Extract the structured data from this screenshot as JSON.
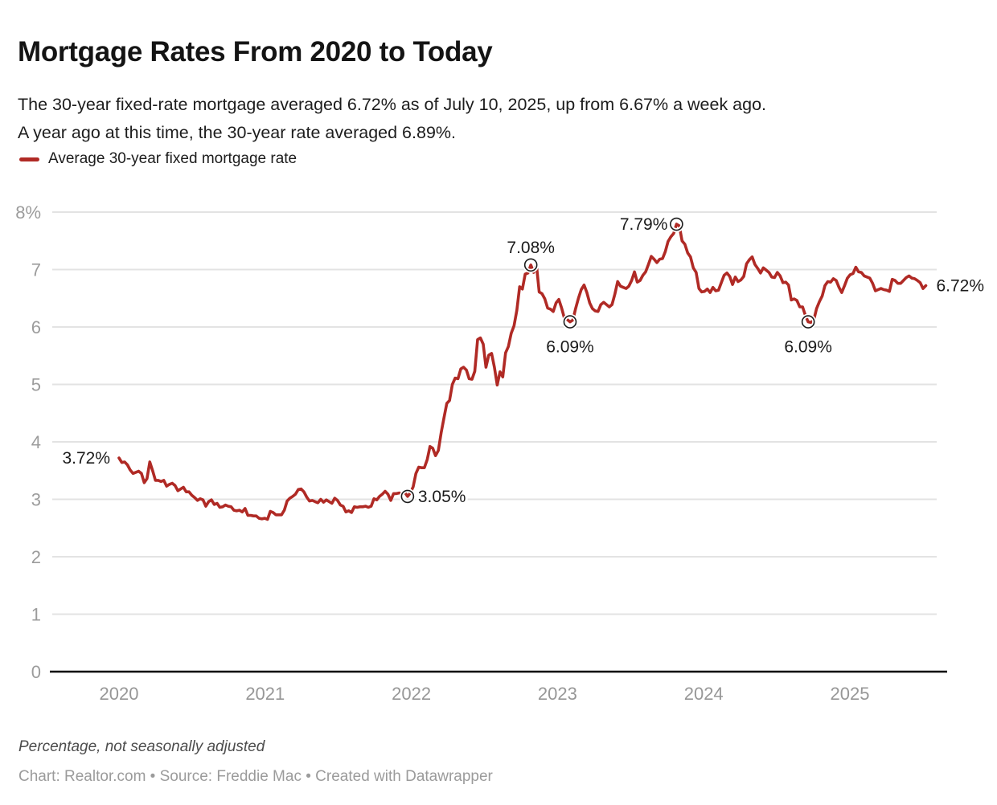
{
  "header": {
    "title": "Mortgage Rates From 2020 to Today",
    "subtitle_lines": [
      "The 30-year fixed-rate mortgage averaged 6.72% as of July 10, 2025, up from 6.67% a week ago.",
      "A year ago at this time, the 30-year rate averaged 6.89%."
    ]
  },
  "legend": {
    "label": "Average 30-year fixed mortgage rate"
  },
  "footer": {
    "note": "Percentage, not seasonally adjusted",
    "credit": "Chart: Realtor.com • Source: Freddie Mac • Created with Datawrapper"
  },
  "chart_data": {
    "type": "line",
    "title": "Mortgage Rates From 2020 to Today",
    "series_name": "Average 30-year fixed mortgage rate",
    "unit": "percent",
    "frequency": "weekly",
    "start_date": "2020-01-02",
    "end_date": "2025-07-10",
    "line_color": "#b02a25",
    "grid": "horizontal",
    "ylim": [
      0,
      8
    ],
    "yticks": [
      "0",
      "1",
      "2",
      "3",
      "4",
      "5",
      "6",
      "7",
      "8%"
    ],
    "years": [
      "2020",
      "2021",
      "2022",
      "2023",
      "2024",
      "2025"
    ],
    "values": [
      3.72,
      3.64,
      3.65,
      3.6,
      3.51,
      3.45,
      3.47,
      3.49,
      3.45,
      3.29,
      3.36,
      3.65,
      3.5,
      3.33,
      3.33,
      3.31,
      3.33,
      3.23,
      3.26,
      3.28,
      3.24,
      3.15,
      3.18,
      3.21,
      3.13,
      3.13,
      3.07,
      3.03,
      2.98,
      3.01,
      2.99,
      2.88,
      2.96,
      2.99,
      2.91,
      2.93,
      2.86,
      2.87,
      2.9,
      2.88,
      2.87,
      2.81,
      2.8,
      2.81,
      2.78,
      2.84,
      2.72,
      2.72,
      2.71,
      2.71,
      2.67,
      2.66,
      2.67,
      2.65,
      2.79,
      2.77,
      2.73,
      2.73,
      2.73,
      2.81,
      2.97,
      3.02,
      3.05,
      3.09,
      3.17,
      3.18,
      3.13,
      3.04,
      2.97,
      2.98,
      2.96,
      2.94,
      3.0,
      2.95,
      2.99,
      2.96,
      2.93,
      3.02,
      2.98,
      2.9,
      2.88,
      2.78,
      2.8,
      2.77,
      2.87,
      2.86,
      2.87,
      2.87,
      2.88,
      2.86,
      2.88,
      3.01,
      2.99,
      3.05,
      3.09,
      3.14,
      3.09,
      2.98,
      3.1,
      3.1,
      3.11,
      3.1,
      3.12,
      3.05,
      3.11,
      3.22,
      3.45,
      3.56,
      3.55,
      3.55,
      3.69,
      3.92,
      3.89,
      3.76,
      3.85,
      4.16,
      4.42,
      4.67,
      4.72,
      5.0,
      5.11,
      5.1,
      5.27,
      5.3,
      5.25,
      5.1,
      5.09,
      5.23,
      5.78,
      5.81,
      5.7,
      5.3,
      5.51,
      5.54,
      5.3,
      4.99,
      5.22,
      5.13,
      5.55,
      5.66,
      5.89,
      6.02,
      6.29,
      6.7,
      6.66,
      6.92,
      6.94,
      7.08,
      6.95,
      7.08,
      6.61,
      6.58,
      6.49,
      6.33,
      6.31,
      6.27,
      6.42,
      6.48,
      6.33,
      6.15,
      6.13,
      6.09,
      6.12,
      6.32,
      6.5,
      6.65,
      6.73,
      6.6,
      6.42,
      6.32,
      6.28,
      6.27,
      6.39,
      6.43,
      6.39,
      6.35,
      6.39,
      6.57,
      6.79,
      6.71,
      6.69,
      6.67,
      6.71,
      6.81,
      6.96,
      6.78,
      6.81,
      6.9,
      6.96,
      7.09,
      7.23,
      7.18,
      7.12,
      7.18,
      7.19,
      7.31,
      7.49,
      7.57,
      7.63,
      7.79,
      7.76,
      7.5,
      7.44,
      7.29,
      7.22,
      7.03,
      6.95,
      6.67,
      6.61,
      6.62,
      6.66,
      6.6,
      6.69,
      6.63,
      6.64,
      6.77,
      6.9,
      6.94,
      6.88,
      6.74,
      6.87,
      6.79,
      6.82,
      6.88,
      7.1,
      7.17,
      7.22,
      7.09,
      7.02,
      6.94,
      7.03,
      6.99,
      6.95,
      6.87,
      6.86,
      6.95,
      6.89,
      6.77,
      6.78,
      6.73,
      6.47,
      6.49,
      6.46,
      6.35,
      6.35,
      6.2,
      6.09,
      6.08,
      6.12,
      6.32,
      6.44,
      6.54,
      6.72,
      6.79,
      6.78,
      6.84,
      6.81,
      6.69,
      6.6,
      6.72,
      6.85,
      6.91,
      6.93,
      7.04,
      6.96,
      6.95,
      6.89,
      6.87,
      6.85,
      6.76,
      6.63,
      6.65,
      6.67,
      6.65,
      6.64,
      6.62,
      6.83,
      6.81,
      6.76,
      6.76,
      6.81,
      6.86,
      6.89,
      6.85,
      6.84,
      6.81,
      6.77,
      6.67,
      6.72
    ],
    "annotations": [
      {
        "text": "3.72%",
        "index": 0,
        "value": 3.72,
        "placement": "left",
        "circle": false
      },
      {
        "text": "3.05%",
        "index": 103,
        "value": 3.05,
        "placement": "right",
        "circle": true
      },
      {
        "text": "7.08%",
        "index": 147,
        "value": 7.08,
        "placement": "above",
        "circle": true
      },
      {
        "text": "6.09%",
        "index": 161,
        "value": 6.09,
        "placement": "below",
        "circle": true
      },
      {
        "text": "7.79%",
        "index": 199,
        "value": 7.79,
        "placement": "left",
        "circle": true
      },
      {
        "text": "6.09%",
        "index": 246,
        "value": 6.09,
        "placement": "below",
        "circle": true
      },
      {
        "text": "6.72%",
        "index": 288,
        "value": 6.72,
        "placement": "right",
        "circle": false
      }
    ]
  }
}
